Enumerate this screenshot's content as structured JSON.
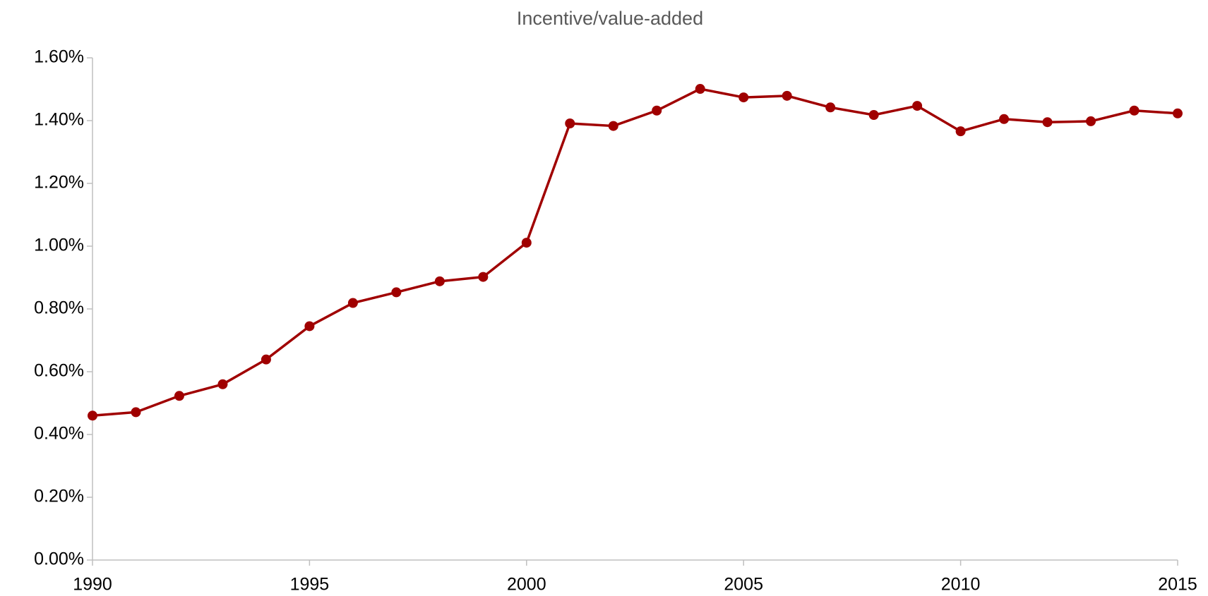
{
  "chart_data": {
    "type": "line",
    "title": "Incentive/value-added",
    "x": [
      1990,
      1991,
      1992,
      1993,
      1994,
      1995,
      1996,
      1997,
      1998,
      1999,
      2000,
      2001,
      2002,
      2003,
      2004,
      2005,
      2006,
      2007,
      2008,
      2009,
      2010,
      2011,
      2012,
      2013,
      2014,
      2015
    ],
    "series": [
      {
        "color": "#a00000",
        "values": [
          0.46,
          0.471,
          0.523,
          0.56,
          0.639,
          0.745,
          0.819,
          0.853,
          0.888,
          0.902,
          1.011,
          1.391,
          1.383,
          1.432,
          1.501,
          1.474,
          1.479,
          1.442,
          1.418,
          1.447,
          1.366,
          1.405,
          1.395,
          1.398,
          1.432,
          1.423
        ]
      }
    ],
    "xlim": [
      1990,
      2015
    ],
    "xticks": [
      1990,
      1995,
      2000,
      2005,
      2010,
      2015
    ],
    "ylim": [
      0,
      1.6
    ],
    "yticks": [
      {
        "value": 0,
        "label": "0.00%"
      },
      {
        "value": 0.2,
        "label": "0.20%"
      },
      {
        "value": 0.4,
        "label": "0.40%"
      },
      {
        "value": 0.6,
        "label": "0.60%"
      },
      {
        "value": 0.8,
        "label": "0.80%"
      },
      {
        "value": 1.0,
        "label": "1.00%"
      },
      {
        "value": 1.2,
        "label": "1.20%"
      },
      {
        "value": 1.4,
        "label": "1.40%"
      },
      {
        "value": 1.6,
        "label": "1.60%"
      }
    ],
    "grid": false
  }
}
